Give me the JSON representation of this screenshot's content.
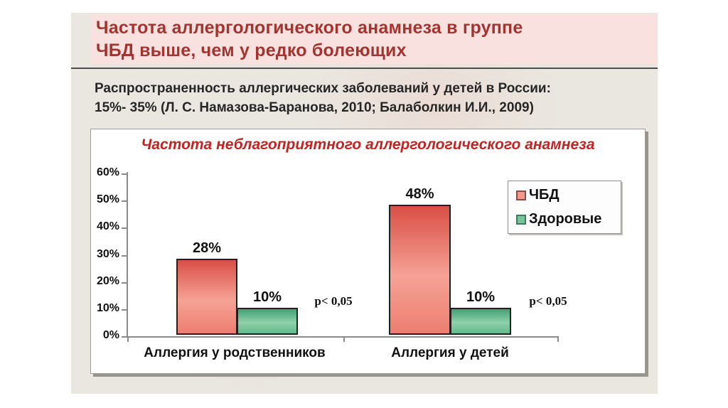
{
  "slide": {
    "title": "Частота аллергологического анамнеза в группе\nЧБД выше, чем у редко болеющих",
    "subtitle": "Распространенность аллергических заболеваний у детей в России:\n15%- 35% (Л. С. Намазова-Баранова, 2010; Балаболкин И.И., 2009)"
  },
  "chart_data": {
    "type": "bar",
    "title": "Частота неблагоприятного аллергологического анамнеза",
    "categories": [
      "Аллергия у родственников",
      "Аллергия у детей"
    ],
    "series": [
      {
        "name": "ЧБД",
        "values": [
          28,
          48
        ],
        "color": "#e4574c"
      },
      {
        "name": "Здоровые",
        "values": [
          10,
          10
        ],
        "color": "#5fb488"
      }
    ],
    "value_labels": [
      [
        "28%",
        "10%"
      ],
      [
        "48%",
        "10%"
      ]
    ],
    "annotations": [
      "p< 0,05",
      "p< 0,05"
    ],
    "yticks": [
      "0%",
      "10%",
      "20%",
      "30%",
      "40%",
      "50%",
      "60%"
    ],
    "ylim": [
      0,
      60
    ],
    "xlabel": "",
    "ylabel": "",
    "grid": false,
    "legend_position": "top-right"
  },
  "colors": {
    "slide_background": "#eae7e0",
    "header_background": "#f8e1de",
    "title_text": "#a33430",
    "subtitle_text": "#262626",
    "chart_title_text": "#c32322",
    "bar_chbd": "#e4574c",
    "bar_healthy": "#5fb488",
    "axis": "#8a8a8a"
  }
}
